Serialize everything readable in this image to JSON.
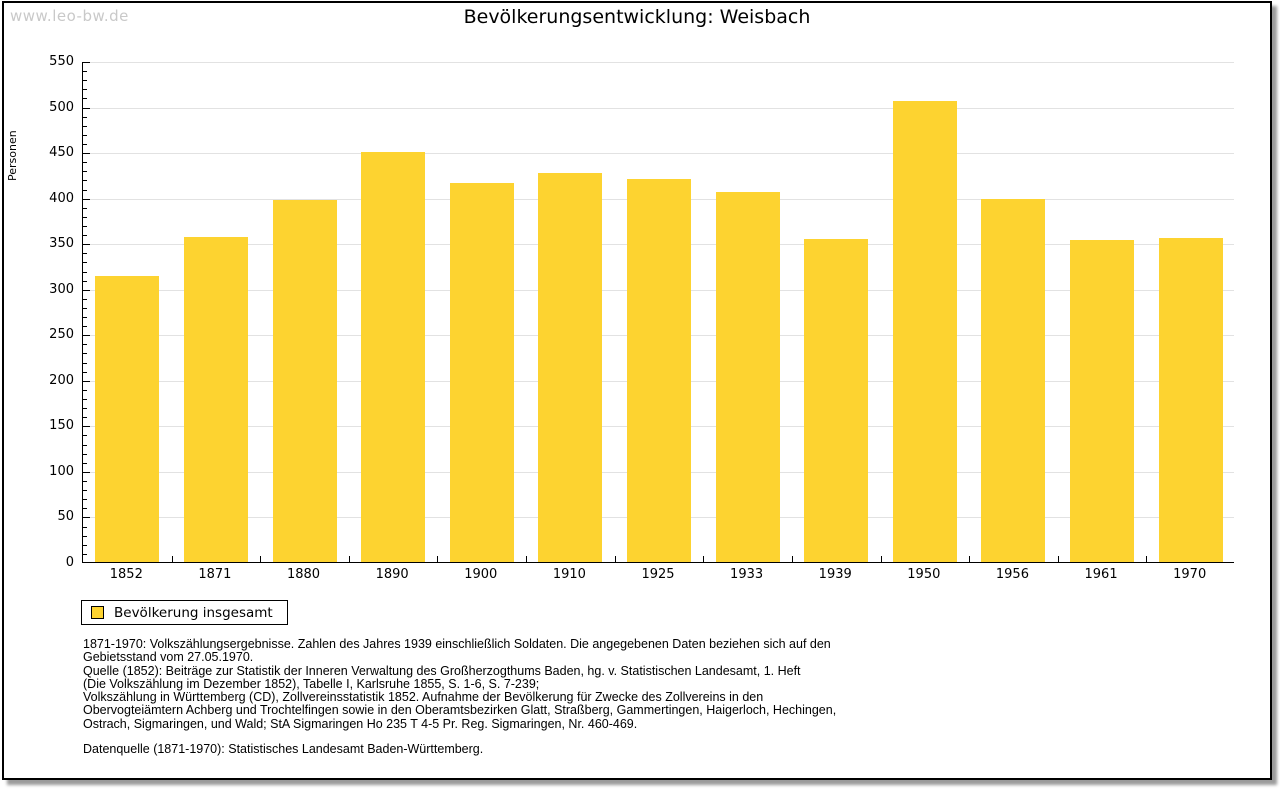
{
  "watermark": "www.leo-bw.de",
  "title": "Bevölkerungsentwicklung: Weisbach",
  "legend": {
    "label": "Bevölkerung insgesamt"
  },
  "chart_data": {
    "type": "bar",
    "title": "Bevölkerungsentwicklung: Weisbach",
    "ylabel": "Personen",
    "xlabel": "",
    "categories": [
      "1852",
      "1871",
      "1880",
      "1890",
      "1900",
      "1910",
      "1925",
      "1933",
      "1939",
      "1950",
      "1956",
      "1961",
      "1970"
    ],
    "values": [
      314,
      357,
      397,
      450,
      416,
      427,
      420,
      406,
      355,
      506,
      399,
      354,
      356
    ],
    "series_name": "Bevölkerung insgesamt",
    "ylim": [
      0,
      550
    ],
    "ytick_step": 50,
    "ytick_minor_step": 10,
    "grid": true,
    "legend_position": "below-plot-left",
    "bar_color": "#FDD330"
  },
  "colors": {
    "bar": "#FDD330",
    "gridline": "#e2e2e2",
    "watermark": "#c9c9c9",
    "axis": "#000000",
    "card_border": "#000000",
    "shadow": "#9b9b9b"
  },
  "notes": {
    "lines": [
      "1871-1970: Volkszählungsergebnisse. Zahlen des Jahres 1939 einschließlich Soldaten. Die angegebenen Daten beziehen sich auf den",
      "Gebietsstand vom 27.05.1970.",
      "Quelle (1852): Beiträge zur Statistik der Inneren Verwaltung des Großherzogthums Baden, hg. v. Statistischen Landesamt, 1. Heft",
      "(Die Volkszählung im Dezember 1852), Tabelle I, Karlsruhe 1855, S. 1-6, S. 7-239;",
      "Volkszählung in Württemberg (CD), Zollvereinsstatistik 1852. Aufnahme der Bevölkerung für Zwecke des Zollvereins in den",
      "Obervogteiämtern Achberg und Trochtelfingen sowie in den Oberamtsbezirken Glatt, Straßberg, Gammertingen, Haigerloch, Hechingen,",
      "Ostrach, Sigmaringen, und Wald; StA Sigmaringen Ho 235 T 4-5 Pr. Reg. Sigmaringen, Nr. 460-469."
    ],
    "datasource": "Datenquelle (1871-1970): Statistisches Landesamt Baden-Württemberg."
  }
}
